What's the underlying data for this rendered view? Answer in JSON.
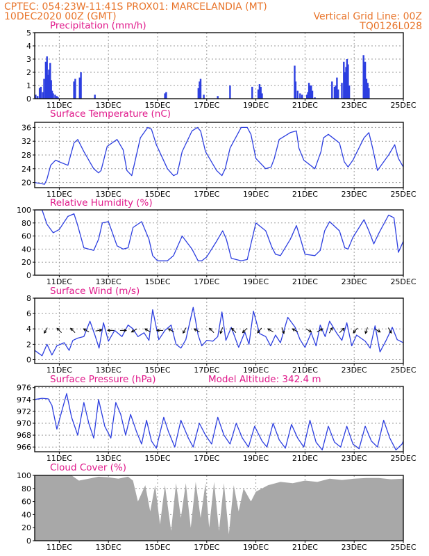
{
  "header": {
    "line1_left": "CPTEC:   054:23W-11:41S   PROX01: MARCELANDIA (MT)",
    "line2_left": "10DEC2020 00Z (GMT)",
    "line2_right": "Vertical Grid Line: 00Z",
    "line3_right": "TQ0126L028"
  },
  "colors": {
    "header": "#e8742a",
    "title": "#e0188a",
    "series": "#2c3ee0",
    "cloud": "#a8a8a8",
    "grid": "#9a9a9a"
  },
  "chart_data": [
    {
      "id": "precip",
      "type": "bar",
      "title": "Precipitation (mm/h)",
      "ylim": [
        0,
        5
      ],
      "yticks": [
        0,
        1,
        2,
        3,
        4,
        5
      ],
      "xlim": [
        0,
        15
      ],
      "xticks": [
        "11DEC",
        "13DEC",
        "15DEC",
        "17DEC",
        "19DEC",
        "21DEC",
        "23DEC",
        "25DEC"
      ],
      "xtick_days": [
        1,
        3,
        5,
        7,
        9,
        11,
        13,
        15
      ],
      "grid": true,
      "series": [
        {
          "x": [
            0.04,
            0.12,
            0.2,
            0.25,
            0.33,
            0.38,
            0.45,
            0.5,
            0.54,
            0.58,
            0.63,
            0.67,
            0.71,
            0.75,
            0.83,
            0.9,
            0.95,
            1.6,
            1.65,
            1.83,
            1.88,
            2.45,
            5.3,
            5.35,
            6.66,
            6.71,
            6.75,
            6.88,
            7.45,
            7.95,
            8.85,
            9.1,
            9.15,
            9.2,
            9.25,
            10.58,
            10.62,
            10.7,
            10.8,
            10.88,
            11.08,
            11.12,
            11.16,
            11.2,
            11.25,
            11.3,
            11.4,
            12.1,
            12.2,
            12.25,
            12.3,
            12.35,
            12.5,
            12.58,
            12.62,
            12.67,
            12.71,
            12.75,
            12.8,
            13.38,
            13.42,
            13.45,
            13.5,
            13.55,
            13.6
          ],
          "values": [
            0.3,
            0.2,
            0.8,
            0.9,
            0.5,
            1.5,
            2.8,
            3.2,
            1.8,
            2.2,
            2.7,
            1.4,
            0.6,
            0.4,
            0.3,
            0.2,
            0.1,
            1.3,
            1.5,
            1.6,
            2.0,
            0.3,
            0.4,
            0.5,
            0.8,
            1.3,
            1.5,
            0.3,
            0.2,
            1.0,
            0.9,
            0.7,
            1.1,
            0.9,
            0.4,
            2.5,
            1.3,
            0.6,
            0.4,
            0.3,
            0.3,
            0.5,
            1.2,
            1.0,
            1.0,
            0.6,
            0.1,
            1.3,
            0.9,
            1.0,
            1.6,
            0.7,
            1.2,
            2.8,
            2.0,
            2.4,
            3.0,
            2.6,
            1.0,
            3.3,
            2.5,
            2.8,
            1.5,
            1.2,
            0.8
          ]
        }
      ]
    },
    {
      "id": "temperature",
      "type": "line",
      "title": "Surface Temperature (nC)",
      "ylim": [
        18.5,
        37.5
      ],
      "yticks": [
        20,
        24,
        28,
        32,
        36
      ],
      "xlim": [
        0,
        15
      ],
      "xticks": [
        "11DEC",
        "13DEC",
        "15DEC",
        "17DEC",
        "19DEC",
        "21DEC",
        "23DEC",
        "25DEC"
      ],
      "xtick_days": [
        1,
        3,
        5,
        7,
        9,
        11,
        13,
        15
      ],
      "grid": true,
      "series": [
        {
          "x": [
            0,
            0.4,
            0.5,
            0.65,
            0.85,
            1.0,
            1.35,
            1.6,
            1.75,
            2.0,
            2.4,
            2.6,
            2.7,
            2.95,
            3.35,
            3.6,
            3.75,
            3.95,
            4.3,
            4.6,
            4.75,
            4.95,
            5.4,
            5.65,
            5.8,
            6.0,
            6.4,
            6.62,
            6.75,
            6.95,
            7.4,
            7.62,
            7.75,
            7.95,
            8.4,
            8.65,
            8.8,
            9.0,
            9.4,
            9.62,
            9.75,
            9.95,
            10.4,
            10.65,
            10.75,
            10.95,
            11.4,
            11.65,
            11.75,
            11.95,
            12.4,
            12.6,
            12.75,
            12.95,
            13.4,
            13.6,
            13.75,
            13.95,
            14.4,
            14.65,
            14.8,
            15.0
          ],
          "values": [
            20.0,
            19.5,
            21.0,
            25.0,
            26.5,
            26.0,
            25.0,
            31.5,
            32.5,
            29.0,
            24.0,
            22.8,
            23.5,
            30.5,
            32.5,
            29.5,
            23.5,
            22.0,
            33.0,
            36.0,
            35.5,
            31.0,
            24.0,
            22.0,
            22.5,
            29.0,
            35.0,
            36.0,
            35.0,
            29.0,
            23.5,
            22.0,
            24.0,
            30.0,
            36.0,
            36.0,
            34.0,
            27.0,
            24.0,
            24.5,
            27.0,
            32.5,
            34.5,
            35.0,
            30.0,
            26.5,
            24.0,
            29.0,
            33.0,
            34.0,
            31.5,
            26.0,
            24.5,
            26.5,
            33.0,
            34.5,
            30.0,
            23.5,
            28.0,
            31.0,
            27.0,
            24.5
          ]
        }
      ]
    },
    {
      "id": "humidity",
      "type": "line",
      "title": "Relative Humidity (%)",
      "ylim": [
        0,
        100
      ],
      "yticks": [
        0,
        20,
        40,
        60,
        80,
        100
      ],
      "xlim": [
        0,
        15
      ],
      "xticks": [
        "11DEC",
        "13DEC",
        "15DEC",
        "17DEC",
        "19DEC",
        "21DEC",
        "23DEC",
        "25DEC"
      ],
      "xtick_days": [
        1,
        3,
        5,
        7,
        9,
        11,
        13,
        15
      ],
      "grid": true,
      "series": [
        {
          "x": [
            0,
            0.3,
            0.5,
            0.75,
            1.0,
            1.35,
            1.6,
            1.75,
            2.0,
            2.4,
            2.6,
            2.75,
            3.0,
            3.35,
            3.6,
            3.8,
            4.0,
            4.35,
            4.65,
            4.8,
            5.0,
            5.4,
            5.65,
            5.8,
            6.0,
            6.4,
            6.65,
            6.8,
            7.0,
            7.4,
            7.65,
            7.8,
            8.0,
            8.4,
            8.65,
            8.8,
            9.0,
            9.4,
            9.65,
            9.8,
            10.0,
            10.4,
            10.65,
            10.8,
            11.0,
            11.4,
            11.62,
            11.8,
            12.0,
            12.4,
            12.62,
            12.75,
            12.95,
            13.4,
            13.6,
            13.8,
            14.0,
            14.4,
            14.62,
            14.8,
            15.0
          ],
          "values": [
            100.0,
            100.0,
            78.0,
            65.0,
            70.0,
            90.0,
            94.0,
            76.0,
            42.0,
            38.0,
            55.0,
            80.0,
            82.0,
            45.0,
            40.0,
            42.0,
            73.0,
            82.0,
            55.0,
            30.0,
            22.0,
            22.0,
            30.0,
            43.0,
            60.0,
            40.0,
            22.0,
            22.0,
            28.0,
            52.0,
            68.0,
            55.0,
            26.0,
            22.0,
            24.0,
            48.0,
            80.0,
            68.0,
            43.0,
            32.0,
            30.0,
            55.0,
            76.0,
            58.0,
            32.0,
            30.0,
            38.0,
            68.0,
            82.0,
            68.0,
            42.0,
            40.0,
            58.0,
            85.0,
            68.0,
            48.0,
            64.0,
            92.0,
            88.0,
            35.0,
            52.0
          ]
        }
      ]
    },
    {
      "id": "wind",
      "type": "line",
      "title": "Surface Wind (m/s)",
      "ylim": [
        -0.5,
        8
      ],
      "yticks": [
        0,
        2,
        4,
        6,
        8
      ],
      "xlim": [
        0,
        15
      ],
      "xticks": [
        "11DEC",
        "13DEC",
        "15DEC",
        "17DEC",
        "19DEC",
        "21DEC",
        "23DEC",
        "25DEC"
      ],
      "xtick_days": [
        1,
        3,
        5,
        7,
        9,
        11,
        13,
        15
      ],
      "grid": true,
      "series": [
        {
          "x": [
            0,
            0.3,
            0.5,
            0.7,
            0.9,
            1.2,
            1.4,
            1.55,
            1.75,
            2.0,
            2.25,
            2.45,
            2.62,
            2.8,
            3.0,
            3.25,
            3.55,
            3.8,
            4.0,
            4.2,
            4.45,
            4.65,
            4.8,
            5.05,
            5.3,
            5.55,
            5.75,
            5.95,
            6.15,
            6.45,
            6.65,
            6.8,
            7.0,
            7.25,
            7.45,
            7.62,
            7.78,
            8.0,
            8.3,
            8.55,
            8.72,
            8.9,
            9.15,
            9.4,
            9.6,
            9.8,
            10.0,
            10.3,
            10.6,
            10.8,
            11.0,
            11.25,
            11.45,
            11.62,
            11.82,
            12.0,
            12.3,
            12.5,
            12.7,
            12.9,
            13.1,
            13.45,
            13.65,
            13.85,
            14.05,
            14.3,
            14.55,
            14.75,
            15.0
          ],
          "values": [
            1.2,
            0.5,
            2.0,
            0.6,
            1.8,
            2.2,
            1.2,
            2.5,
            2.8,
            3.0,
            5.0,
            3.2,
            1.5,
            4.8,
            2.4,
            3.8,
            3.0,
            4.5,
            4.0,
            3.0,
            3.5,
            2.5,
            6.5,
            2.6,
            3.8,
            4.5,
            2.0,
            1.5,
            2.6,
            6.8,
            3.2,
            1.8,
            2.5,
            2.4,
            3.0,
            6.2,
            2.5,
            4.2,
            1.6,
            3.6,
            2.0,
            6.3,
            3.4,
            3.0,
            1.8,
            3.2,
            2.2,
            5.5,
            4.2,
            2.6,
            1.6,
            3.5,
            1.8,
            4.5,
            3.0,
            5.0,
            3.4,
            2.5,
            4.8,
            1.8,
            3.2,
            2.4,
            1.5,
            4.4,
            1.0,
            2.5,
            4.2,
            2.6,
            2.2
          ]
        }
      ],
      "arrows": {
        "y": 3.8,
        "x": [
          0.45,
          1.0,
          1.55,
          2.1,
          2.6,
          3.1,
          3.6,
          4.05,
          4.6,
          5.1,
          5.55,
          6.1,
          6.6,
          7.2,
          7.6,
          8.1,
          8.55,
          9.15,
          9.6,
          10.1,
          10.6,
          11.15,
          11.6,
          12.05,
          12.5,
          13.05,
          13.5,
          13.95,
          14.45
        ],
        "bearing": [
          210,
          315,
          315,
          300,
          80,
          270,
          90,
          240,
          300,
          270,
          300,
          210,
          300,
          315,
          200,
          315,
          225,
          220,
          300,
          160,
          300,
          120,
          60,
          30,
          45,
          220,
          200,
          120,
          150
        ]
      }
    },
    {
      "id": "pressure",
      "type": "line",
      "title": "Surface Pressure (hPa)",
      "annotation": "Model Altitude: 342.4 m",
      "ylim": [
        965.2,
        976.2
      ],
      "yticks": [
        966,
        968,
        970,
        972,
        974,
        976
      ],
      "xlim": [
        0,
        15
      ],
      "xticks": [
        "11DEC",
        "13DEC",
        "15DEC",
        "17DEC",
        "19DEC",
        "21DEC",
        "23DEC",
        "25DEC"
      ],
      "xtick_days": [
        1,
        3,
        5,
        7,
        9,
        11,
        13,
        15
      ],
      "grid": true,
      "series": [
        {
          "x": [
            0,
            0.3,
            0.55,
            0.7,
            0.9,
            1.1,
            1.3,
            1.5,
            1.75,
            2.0,
            2.2,
            2.4,
            2.6,
            2.85,
            3.1,
            3.3,
            3.5,
            3.7,
            3.9,
            4.15,
            4.35,
            4.55,
            4.75,
            4.95,
            5.25,
            5.45,
            5.7,
            5.95,
            6.25,
            6.45,
            6.7,
            6.95,
            7.2,
            7.45,
            7.7,
            7.95,
            8.2,
            8.45,
            8.7,
            8.95,
            9.25,
            9.45,
            9.7,
            9.95,
            10.2,
            10.45,
            10.7,
            10.95,
            11.2,
            11.45,
            11.7,
            11.95,
            12.2,
            12.45,
            12.7,
            12.95,
            13.2,
            13.45,
            13.7,
            13.95,
            14.2,
            14.45,
            14.7,
            14.95,
            15.0
          ],
          "values": [
            974.0,
            974.2,
            974.1,
            973.0,
            969.0,
            972.0,
            975.0,
            971.0,
            968.0,
            973.5,
            970.0,
            967.5,
            974.0,
            969.5,
            967.5,
            973.5,
            971.5,
            968.0,
            971.5,
            968.5,
            966.5,
            970.5,
            967.0,
            965.8,
            971.0,
            968.5,
            966.0,
            970.5,
            967.5,
            966.0,
            970.0,
            968.0,
            966.5,
            971.0,
            968.0,
            966.5,
            970.0,
            967.5,
            966.0,
            969.5,
            967.0,
            966.0,
            970.0,
            967.2,
            965.8,
            969.8,
            967.5,
            966.0,
            970.5,
            966.8,
            965.5,
            969.5,
            966.8,
            966.0,
            969.5,
            966.5,
            965.7,
            969.5,
            967.0,
            966.0,
            970.5,
            967.5,
            965.5,
            966.5,
            967.0
          ]
        }
      ]
    },
    {
      "id": "cloud",
      "type": "area",
      "title": "Cloud Cover (%)",
      "ylim": [
        0,
        100
      ],
      "yticks": [
        0,
        20,
        40,
        60,
        80,
        100
      ],
      "xlim": [
        0,
        15
      ],
      "xticks": [
        "11DEC",
        "13DEC",
        "15DEC",
        "17DEC",
        "19DEC",
        "21DEC",
        "23DEC",
        "25DEC"
      ],
      "xtick_days": [
        1,
        3,
        5,
        7,
        9,
        11,
        13,
        15
      ],
      "grid": true,
      "series": [
        {
          "x": [
            0,
            0.5,
            1.0,
            1.5,
            1.8,
            2.2,
            2.6,
            3.0,
            3.4,
            3.8,
            4.0,
            4.2,
            4.5,
            4.7,
            4.9,
            5.1,
            5.3,
            5.55,
            5.75,
            5.95,
            6.15,
            6.35,
            6.55,
            6.75,
            6.95,
            7.1,
            7.3,
            7.5,
            7.7,
            7.9,
            8.1,
            8.3,
            8.5,
            8.8,
            9.0,
            9.5,
            10.0,
            10.5,
            11.0,
            11.5,
            12.0,
            12.5,
            13.0,
            13.5,
            14.0,
            14.5,
            15.0
          ],
          "values": [
            100,
            100,
            100,
            100,
            92,
            95,
            98,
            97,
            95,
            98,
            92,
            60,
            85,
            45,
            85,
            25,
            85,
            15,
            88,
            35,
            88,
            20,
            90,
            35,
            88,
            20,
            90,
            15,
            88,
            10,
            85,
            45,
            80,
            60,
            75,
            85,
            90,
            88,
            92,
            90,
            95,
            93,
            95,
            96,
            96,
            94,
            95
          ]
        }
      ]
    }
  ]
}
